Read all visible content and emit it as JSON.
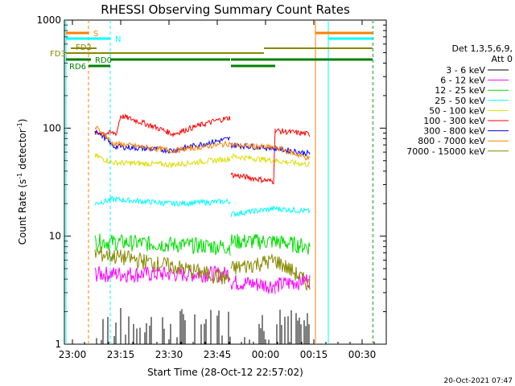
{
  "chart_data": {
    "type": "line",
    "title": "RHESSI Observing Summary Count Rates",
    "xlabel": "Start Time (28-Oct-12 22:57:02)",
    "ylabel_main": "Count Rate (s",
    "ylabel_sup1": "-1",
    "ylabel_mid": " detector",
    "ylabel_sup2": "-1",
    "ylabel_end": ")",
    "yscale": "log",
    "xlim": [
      "22:57:02",
      "23:37:00"
    ],
    "ylim": [
      1,
      1000
    ],
    "x_ticks": [
      "23:00",
      "23:15",
      "23:30",
      "23:45",
      "00:00",
      "00:15",
      "00:30"
    ],
    "y_ticks": [
      "1",
      "10",
      "100",
      "1000"
    ],
    "timestamp": "20-Oct-2021 07:47",
    "legend_header": [
      "Det 1,3,5,6,9,",
      "Att 0"
    ],
    "series": [
      {
        "name": "3 - 6 keV",
        "color": "#000000",
        "level": 1.5
      },
      {
        "name": "6 - 12 keV",
        "color": "#ff00ff",
        "level": 4.5
      },
      {
        "name": "12 - 25 keV",
        "color": "#00dd00",
        "level": 8
      },
      {
        "name": "25 - 50 keV",
        "color": "#00ffff",
        "level": 20
      },
      {
        "name": "50 - 100 keV",
        "color": "#dddd00",
        "level": 45
      },
      {
        "name": "100 - 300 keV",
        "color": "#ff0000",
        "level": 95
      },
      {
        "name": "300 - 800 keV",
        "color": "#0000ff",
        "level": 70
      },
      {
        "name": "800 - 7000 keV",
        "color": "#ff8000",
        "level": 60
      },
      {
        "name": "7000 - 15000 keV",
        "color": "#888800",
        "level": 6
      }
    ],
    "flags": [
      {
        "label": "S",
        "color": "#ff8000"
      },
      {
        "label": "N",
        "color": "#00ffff"
      },
      {
        "label": "FD2",
        "color": "#888800"
      },
      {
        "label": "FD3",
        "color": "#888800"
      },
      {
        "label": "RD0",
        "color": "#008000"
      },
      {
        "label": "RD6",
        "color": "#008000"
      }
    ]
  }
}
